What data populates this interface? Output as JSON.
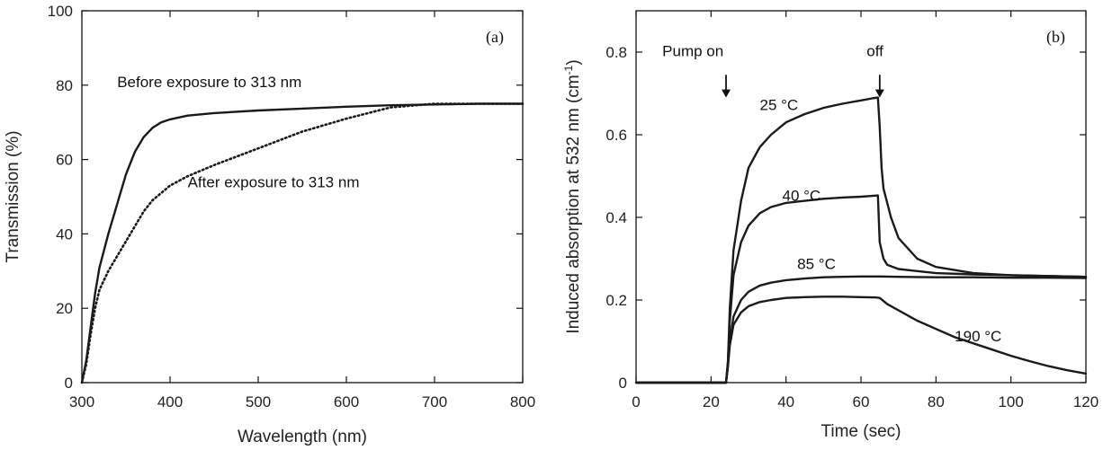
{
  "chart_data": [
    {
      "panel": "(a)",
      "type": "line",
      "xlabel": "Wavelength (nm)",
      "ylabel": "Transmission (%)",
      "xlim": [
        300,
        800
      ],
      "ylim": [
        0,
        100
      ],
      "xticks": [
        300,
        400,
        500,
        600,
        700,
        800
      ],
      "yticks": [
        0,
        20,
        40,
        60,
        80,
        100
      ],
      "series": [
        {
          "name": "Before exposure to 313 nm",
          "style": "solid",
          "x": [
            300,
            305,
            310,
            315,
            320,
            330,
            340,
            350,
            360,
            370,
            380,
            390,
            400,
            420,
            450,
            500,
            550,
            600,
            650,
            700,
            750,
            800
          ],
          "y": [
            0,
            6,
            15,
            24,
            31,
            40,
            48,
            56,
            62,
            66,
            68.5,
            70,
            70.8,
            71.8,
            72.5,
            73.2,
            73.7,
            74.2,
            74.6,
            74.8,
            75,
            75
          ]
        },
        {
          "name": "After exposure to 313 nm",
          "style": "dotted",
          "x": [
            300,
            305,
            310,
            315,
            320,
            330,
            340,
            350,
            360,
            370,
            380,
            390,
            400,
            420,
            450,
            500,
            550,
            600,
            650,
            700,
            750,
            800
          ],
          "y": [
            0,
            5,
            13,
            20,
            25,
            30,
            34,
            38,
            42,
            46,
            49,
            51,
            53,
            55.5,
            58.5,
            63,
            67.5,
            71,
            74,
            75,
            75,
            75
          ]
        }
      ],
      "annotations": [
        {
          "text": "Before exposure to 313 nm",
          "x": 340,
          "y": 79.5
        },
        {
          "text": "After exposure to 313 nm",
          "x": 420,
          "y": 52.5
        }
      ]
    },
    {
      "panel": "(b)",
      "type": "line",
      "xlabel": "Time (sec)",
      "ylabel": "Induced absorption at 532 nm (cm",
      "ylabel_sup": "-1",
      "ylabel_tail": ")",
      "xlim": [
        0,
        120
      ],
      "ylim": [
        0,
        0.9
      ],
      "xticks": [
        0,
        20,
        40,
        60,
        80,
        100,
        120
      ],
      "yticks": [
        0,
        0.2,
        0.4,
        0.6,
        0.8
      ],
      "series": [
        {
          "name": "25 °C",
          "x": [
            0,
            24,
            24.5,
            25,
            26,
            28,
            30,
            33,
            36,
            40,
            45,
            50,
            55,
            60,
            63,
            64.5,
            65,
            65.5,
            66,
            68,
            70,
            75,
            80,
            90,
            100,
            110,
            120
          ],
          "y": [
            0,
            0,
            0.05,
            0.18,
            0.32,
            0.44,
            0.52,
            0.57,
            0.6,
            0.63,
            0.65,
            0.665,
            0.675,
            0.683,
            0.688,
            0.69,
            0.62,
            0.52,
            0.47,
            0.4,
            0.35,
            0.3,
            0.28,
            0.265,
            0.26,
            0.258,
            0.256
          ]
        },
        {
          "name": "40 °C",
          "x": [
            0,
            24,
            24.5,
            25,
            26,
            28,
            30,
            33,
            36,
            40,
            45,
            50,
            55,
            60,
            63,
            64.5,
            65,
            66,
            67,
            70,
            75,
            80,
            90,
            100,
            110,
            120
          ],
          "y": [
            0,
            0,
            0.05,
            0.15,
            0.26,
            0.34,
            0.38,
            0.41,
            0.425,
            0.435,
            0.44,
            0.445,
            0.448,
            0.45,
            0.452,
            0.453,
            0.34,
            0.3,
            0.285,
            0.275,
            0.27,
            0.265,
            0.262,
            0.26,
            0.258,
            0.256
          ]
        },
        {
          "name": "85 °C",
          "x": [
            0,
            24,
            24.5,
            25,
            26,
            28,
            30,
            33,
            36,
            40,
            45,
            50,
            55,
            60,
            65,
            70,
            80,
            90,
            100,
            110,
            120
          ],
          "y": [
            0,
            0,
            0.04,
            0.1,
            0.16,
            0.2,
            0.22,
            0.235,
            0.242,
            0.248,
            0.252,
            0.255,
            0.256,
            0.257,
            0.257,
            0.256,
            0.255,
            0.255,
            0.254,
            0.254,
            0.253
          ]
        },
        {
          "name": "190 °C",
          "x": [
            0,
            24,
            24.5,
            25,
            26,
            28,
            30,
            33,
            36,
            40,
            45,
            50,
            55,
            60,
            64,
            65,
            67,
            70,
            75,
            80,
            85,
            90,
            95,
            100,
            105,
            110,
            115,
            120
          ],
          "y": [
            0,
            0,
            0.04,
            0.09,
            0.14,
            0.17,
            0.185,
            0.195,
            0.2,
            0.205,
            0.207,
            0.208,
            0.208,
            0.207,
            0.206,
            0.205,
            0.19,
            0.175,
            0.15,
            0.13,
            0.11,
            0.095,
            0.08,
            0.065,
            0.052,
            0.04,
            0.03,
            0.022
          ]
        }
      ],
      "annotations": [
        {
          "text": "Pump on",
          "x": 7,
          "y": 0.79
        },
        {
          "text": "off",
          "x": 61.5,
          "y": 0.79
        },
        {
          "text": "25 °C",
          "x": 33,
          "y": 0.66
        },
        {
          "text": "40 °C",
          "x": 39,
          "y": 0.44
        },
        {
          "text": "85 °C",
          "x": 43,
          "y": 0.275
        },
        {
          "text": "190 °C",
          "x": 85,
          "y": 0.1
        }
      ],
      "arrows": [
        {
          "label": "Pump on",
          "x": 24,
          "y_from": 0.745,
          "y_to": 0.69
        },
        {
          "label": "off",
          "x": 65,
          "y_from": 0.745,
          "y_to": 0.69
        }
      ]
    }
  ]
}
